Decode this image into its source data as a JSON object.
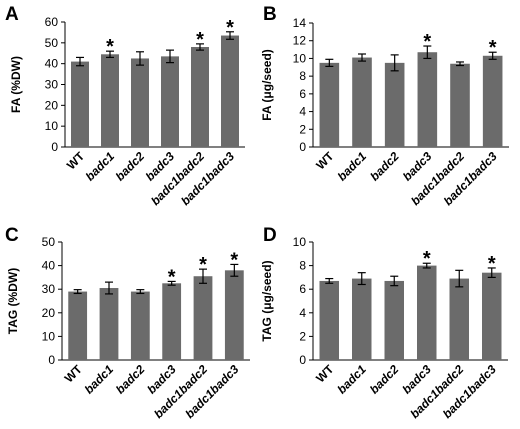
{
  "chart_data": [
    {
      "type": "bar",
      "panel_label": "A",
      "ylabel": "FA (%DW)",
      "ylim": [
        0,
        60
      ],
      "ytick_step": 10,
      "categories": [
        "WT",
        "badc1",
        "badc2",
        "badc3",
        "badc1badc2",
        "badc1badc3"
      ],
      "values": [
        41,
        44.5,
        42.5,
        43.5,
        48,
        53.5
      ],
      "errors": [
        2,
        1.5,
        3.2,
        3,
        1.5,
        1.8
      ],
      "significant": [
        false,
        true,
        false,
        false,
        true,
        true
      ],
      "significance_marker": "*"
    },
    {
      "type": "bar",
      "panel_label": "B",
      "ylabel": "FA (μg/seed)",
      "ylim": [
        0,
        14
      ],
      "ytick_step": 2,
      "categories": [
        "WT",
        "badc1",
        "badc2",
        "badc3",
        "badc1badc2",
        "badc1badc3"
      ],
      "values": [
        9.5,
        10.1,
        9.5,
        10.7,
        9.4,
        10.3
      ],
      "errors": [
        0.4,
        0.4,
        0.9,
        0.7,
        0.2,
        0.4
      ],
      "significant": [
        false,
        false,
        false,
        true,
        false,
        true
      ],
      "significance_marker": "*"
    },
    {
      "type": "bar",
      "panel_label": "C",
      "ylabel": "TAG (%DW)",
      "ylim": [
        0,
        50
      ],
      "ytick_step": 10,
      "categories": [
        "WT",
        "badc1",
        "badc2",
        "badc3",
        "badc1badc2",
        "badc1badc3"
      ],
      "values": [
        29,
        30.5,
        29,
        32.5,
        35.5,
        38
      ],
      "errors": [
        0.8,
        2.5,
        0.8,
        0.8,
        3,
        2.5
      ],
      "significant": [
        false,
        false,
        false,
        true,
        true,
        true
      ],
      "significance_marker": "*"
    },
    {
      "type": "bar",
      "panel_label": "D",
      "ylabel": "TAG (μg/seed)",
      "ylim": [
        0,
        10
      ],
      "ytick_step": 2,
      "categories": [
        "WT",
        "badc1",
        "badc2",
        "badc3",
        "badc1badc2",
        "badc1badc3"
      ],
      "values": [
        6.7,
        6.9,
        6.7,
        8,
        6.9,
        7.4
      ],
      "errors": [
        0.2,
        0.5,
        0.4,
        0.2,
        0.7,
        0.4
      ],
      "significant": [
        false,
        false,
        false,
        true,
        false,
        true
      ],
      "significance_marker": "*"
    }
  ]
}
